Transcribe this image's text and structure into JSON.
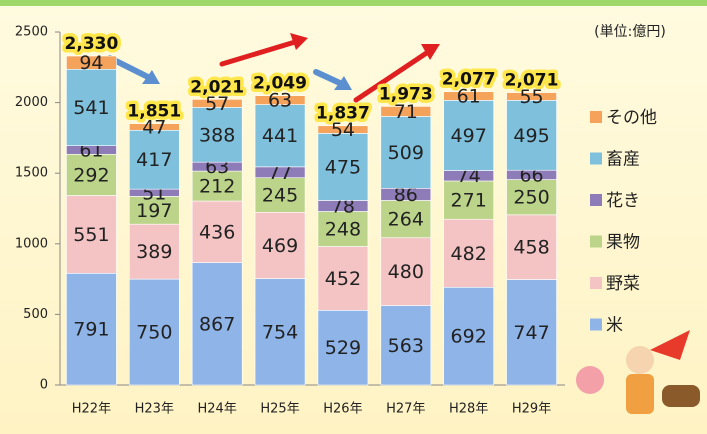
{
  "chart_data": {
    "type": "stacked_bar",
    "unit_label": "(単位:億円)",
    "categories": [
      "H22年",
      "H23年",
      "H24年",
      "H25年",
      "H26年",
      "H27年",
      "H28年",
      "H29年"
    ],
    "series": [
      {
        "name": "米",
        "color": "#8fb4e8",
        "values": [
          791,
          750,
          867,
          754,
          529,
          563,
          692,
          747
        ]
      },
      {
        "name": "野菜",
        "color": "#f4c4c4",
        "values": [
          551,
          389,
          436,
          469,
          452,
          480,
          482,
          458
        ]
      },
      {
        "name": "果物",
        "color": "#bcd48a",
        "values": [
          292,
          197,
          212,
          245,
          248,
          264,
          271,
          250
        ]
      },
      {
        "name": "花き",
        "color": "#8e7cb8",
        "values": [
          61,
          51,
          63,
          77,
          78,
          86,
          74,
          66
        ]
      },
      {
        "name": "畜産",
        "color": "#7fc0dc",
        "values": [
          541,
          417,
          388,
          441,
          475,
          509,
          497,
          495
        ]
      },
      {
        "name": "その他",
        "color": "#f5a25a",
        "values": [
          94,
          47,
          57,
          63,
          54,
          71,
          61,
          55
        ]
      }
    ],
    "totals": {
      "values": [
        2330,
        1851,
        2021,
        2049,
        1837,
        1973,
        2077,
        2071
      ],
      "value_labels": [
        "2,330",
        "1,851",
        "2,021",
        "2,049",
        "1,837",
        "1,973",
        "2,077",
        "2,071"
      ]
    },
    "ylim": [
      0,
      2500
    ],
    "yticks": [
      0,
      500,
      1000,
      1500,
      2000,
      2500
    ],
    "legend": "right"
  }
}
